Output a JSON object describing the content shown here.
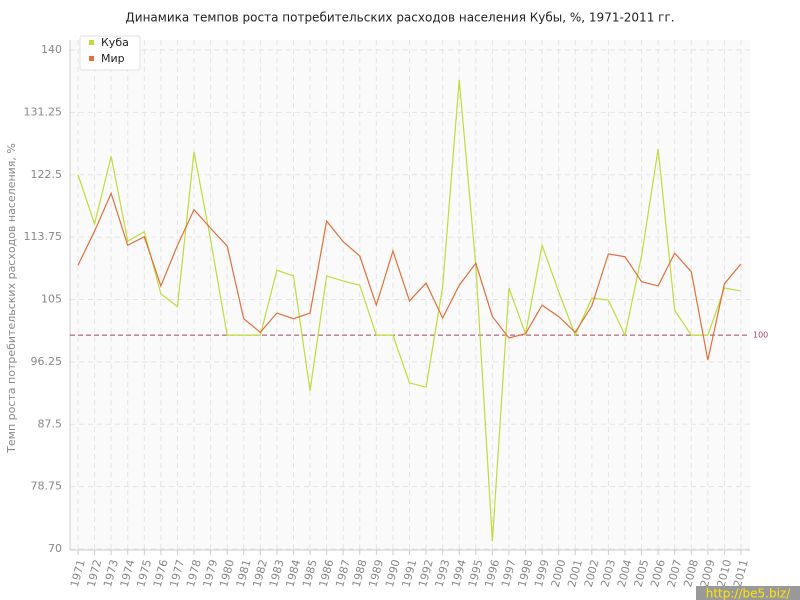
{
  "chart_data": {
    "type": "line",
    "title": "Динамика темпов роста потребительских расходов населения Кубы, %, 1971-2011 гг.",
    "y_label": "Темп роста потребительских расходов населения, %",
    "categories": [
      "1971",
      "1972",
      "1973",
      "1974",
      "1975",
      "1976",
      "1977",
      "1978",
      "1979",
      "1980",
      "1981",
      "1982",
      "1983",
      "1984",
      "1985",
      "1986",
      "1987",
      "1988",
      "1989",
      "1990",
      "1991",
      "1992",
      "1993",
      "1994",
      "1995",
      "1996",
      "1997",
      "1998",
      "1999",
      "2000",
      "2001",
      "2002",
      "2003",
      "2004",
      "2005",
      "2006",
      "2007",
      "2008",
      "2009",
      "2010",
      "2011"
    ],
    "series": [
      {
        "name": "Куба",
        "color": "#bfdc3c",
        "values": [
          122.5,
          115.6,
          125.1,
          113.2,
          114.5,
          105.8,
          104.0,
          125.7,
          113.4,
          100,
          100,
          100,
          109.1,
          108.3,
          92.2,
          108.3,
          107.6,
          107.0,
          100,
          100,
          93.3,
          92.7,
          106.8,
          135.8,
          109.8,
          71.1,
          106.6,
          100.2,
          112.6,
          106.1,
          100,
          105.2,
          104.9,
          100,
          111.1,
          126.1,
          103.5,
          100,
          100,
          106.6,
          106.2
        ]
      },
      {
        "name": "Мир",
        "color": "#e0703c",
        "values": [
          109.8,
          114.6,
          119.9,
          112.6,
          113.8,
          106.9,
          112.6,
          117.6,
          115.0,
          112.5,
          102.3,
          100.4,
          103.1,
          102.3,
          103.1,
          116.0,
          113.1,
          111.1,
          104.2,
          111.8,
          104.8,
          107.3,
          102.4,
          107.0,
          110.1,
          102.6,
          99.6,
          100.2,
          104.2,
          102.6,
          100.4,
          104.1,
          111.4,
          111.0,
          107.5,
          106.9,
          111.5,
          108.9,
          96.5,
          107.2,
          110.0
        ]
      }
    ],
    "ylim": [
      70,
      140
    ],
    "yticks": [
      70,
      78.75,
      87.5,
      96.25,
      105,
      113.75,
      122.5,
      131.25,
      140
    ],
    "reference_line": 100,
    "reference_color": "#a8405c",
    "grid": true,
    "legend": "top-left",
    "watermark": "http://be5.biz/"
  }
}
